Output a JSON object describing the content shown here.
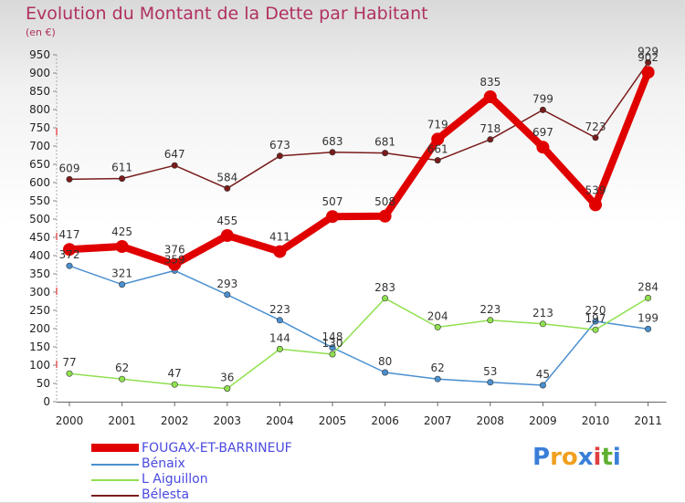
{
  "chart_data": {
    "type": "line",
    "title": "Evolution du Montant de la Dette par Habitant",
    "unit_label": "(en €)",
    "x": [
      "2000",
      "2001",
      "2002",
      "2003",
      "2004",
      "2005",
      "2006",
      "2007",
      "2008",
      "2009",
      "2010",
      "2011"
    ],
    "y_ticks": [
      0,
      50,
      100,
      150,
      200,
      250,
      300,
      350,
      400,
      450,
      500,
      550,
      600,
      650,
      700,
      750,
      800,
      850,
      900,
      950
    ],
    "ylim": [
      0,
      950
    ],
    "grid": false,
    "legend_position": "bottom-left",
    "series": [
      {
        "name": "FOUGAX-ET-BARRINEUF",
        "color": "#e00000",
        "values": [
          417,
          425,
          376,
          455,
          411,
          507,
          508,
          719,
          835,
          697,
          539,
          902
        ],
        "labels": [
          "417",
          "425",
          "376",
          "455",
          "411",
          "507",
          "508",
          "719",
          "835",
          "697",
          "539",
          "902"
        ]
      },
      {
        "name": "Bénaix",
        "color": "#4a90d0",
        "values": [
          372,
          321,
          359,
          293,
          223,
          148,
          80,
          62,
          53,
          45,
          220,
          199
        ],
        "labels": [
          "372",
          "321",
          "359",
          "293",
          "223",
          "148",
          "80",
          "62",
          "53",
          "45",
          "220",
          "199"
        ]
      },
      {
        "name": "L' Aiguillon",
        "color": "#90e050",
        "values": [
          77,
          62,
          47,
          36,
          144,
          130,
          283,
          204,
          223,
          213,
          197,
          284
        ],
        "labels": [
          "77",
          "62",
          "47",
          "36",
          "144",
          "130",
          "283",
          "204",
          "223",
          "213",
          "197",
          "284"
        ]
      },
      {
        "name": "Bélesta",
        "color": "#7a1c1c",
        "values": [
          609,
          611,
          647,
          584,
          673,
          683,
          681,
          661,
          718,
          799,
          723,
          929
        ],
        "labels": [
          "609",
          "611",
          "647",
          "584",
          "673",
          "683",
          "681",
          "661",
          "718",
          "799",
          "723",
          "929"
        ]
      }
    ]
  },
  "legend": [
    {
      "label": "FOUGAX-ET-BARRINEUF",
      "color": "#e00000"
    },
    {
      "label": "Bénaix",
      "color": "#4a90d0"
    },
    {
      "label": "L  Aiguillon",
      "color": "#90e050"
    },
    {
      "label": "Bélesta",
      "color": "#7a1c1c"
    }
  ],
  "brand": {
    "letters": [
      "P",
      "r",
      "o",
      "x",
      "i",
      "t",
      "i"
    ],
    "colors": [
      "#3a7fd8",
      "#f0a020",
      "#f0a020",
      "#3a7fd8",
      "#e04040",
      "#60b030",
      "#3a7fd8"
    ]
  }
}
